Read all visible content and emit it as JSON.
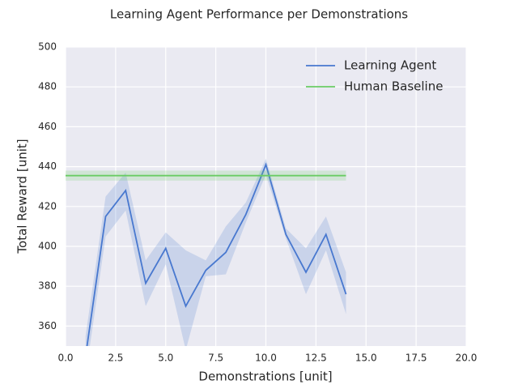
{
  "chart_data": {
    "type": "line",
    "title": "Learning Agent Performance per Demonstrations",
    "x_label": "Demonstrations [unit]",
    "y_label": "Total Reward [unit]",
    "xlim": [
      0,
      20
    ],
    "ylim": [
      350,
      500
    ],
    "xticks": [
      {
        "value": 0,
        "label": "0.0"
      },
      {
        "value": 2.5,
        "label": "2.5"
      },
      {
        "value": 5,
        "label": "5.0"
      },
      {
        "value": 7.5,
        "label": "7.5"
      },
      {
        "value": 10,
        "label": "10.0"
      },
      {
        "value": 12.5,
        "label": "12.5"
      },
      {
        "value": 15,
        "label": "15.0"
      },
      {
        "value": 17.5,
        "label": "17.5"
      },
      {
        "value": 20,
        "label": "20.0"
      }
    ],
    "yticks": [
      360,
      380,
      400,
      420,
      440,
      460,
      480,
      500
    ],
    "grid": true,
    "legend": "upper right",
    "series": [
      {
        "name": "Learning Agent",
        "color": "#4878cf",
        "x": [
          1,
          2,
          3,
          4,
          5,
          6,
          7,
          8,
          9,
          10,
          11,
          12,
          13,
          14
        ],
        "values": [
          345,
          415,
          428,
          381.5,
          399,
          370,
          388,
          397,
          416,
          441,
          406,
          387,
          406,
          376
        ],
        "lower": [
          335,
          405,
          418,
          370,
          391,
          348,
          385,
          386,
          412,
          436,
          404,
          376,
          398,
          366
        ],
        "upper": [
          355,
          425,
          437,
          393,
          407,
          398,
          393,
          410,
          422,
          444,
          409,
          399,
          415,
          387
        ]
      },
      {
        "name": "Human Baseline",
        "color": "#6acc65",
        "x": [
          0,
          14
        ],
        "values": [
          435.5,
          435.5
        ],
        "lower": [
          433,
          433
        ],
        "upper": [
          438,
          438
        ]
      }
    ]
  }
}
